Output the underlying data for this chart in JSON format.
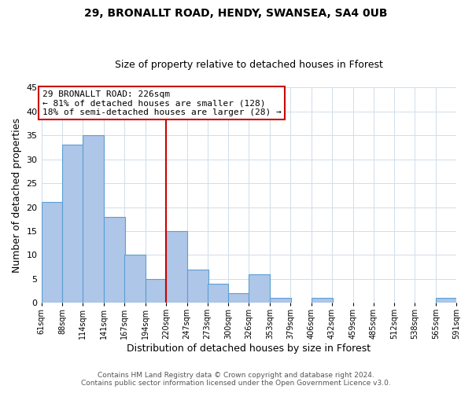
{
  "title": "29, BRONALLT ROAD, HENDY, SWANSEA, SA4 0UB",
  "subtitle": "Size of property relative to detached houses in Fforest",
  "xlabel": "Distribution of detached houses by size in Fforest",
  "ylabel": "Number of detached properties",
  "bins": [
    61,
    88,
    114,
    141,
    167,
    194,
    220,
    247,
    273,
    300,
    326,
    353,
    379,
    406,
    432,
    459,
    485,
    512,
    538,
    565,
    591
  ],
  "bin_labels": [
    "61sqm",
    "88sqm",
    "114sqm",
    "141sqm",
    "167sqm",
    "194sqm",
    "220sqm",
    "247sqm",
    "273sqm",
    "300sqm",
    "326sqm",
    "353sqm",
    "379sqm",
    "406sqm",
    "432sqm",
    "459sqm",
    "485sqm",
    "512sqm",
    "538sqm",
    "565sqm",
    "591sqm"
  ],
  "counts": [
    21,
    33,
    35,
    18,
    10,
    5,
    15,
    7,
    4,
    2,
    6,
    1,
    0,
    1,
    0,
    0,
    0,
    0,
    0,
    1
  ],
  "bar_color": "#aec6e8",
  "bar_edge_color": "#5a9fd4",
  "property_line_x": 220,
  "property_line_color": "#cc0000",
  "ylim": [
    0,
    45
  ],
  "yticks": [
    0,
    5,
    10,
    15,
    20,
    25,
    30,
    35,
    40,
    45
  ],
  "annotation_line1": "29 BRONALLT ROAD: 226sqm",
  "annotation_line2": "← 81% of detached houses are smaller (128)",
  "annotation_line3": "18% of semi-detached houses are larger (28) →",
  "annotation_box_color": "#ffffff",
  "annotation_box_edge_color": "#cc0000",
  "footer_line1": "Contains HM Land Registry data © Crown copyright and database right 2024.",
  "footer_line2": "Contains public sector information licensed under the Open Government Licence v3.0.",
  "background_color": "#ffffff",
  "grid_color": "#d0dde8"
}
